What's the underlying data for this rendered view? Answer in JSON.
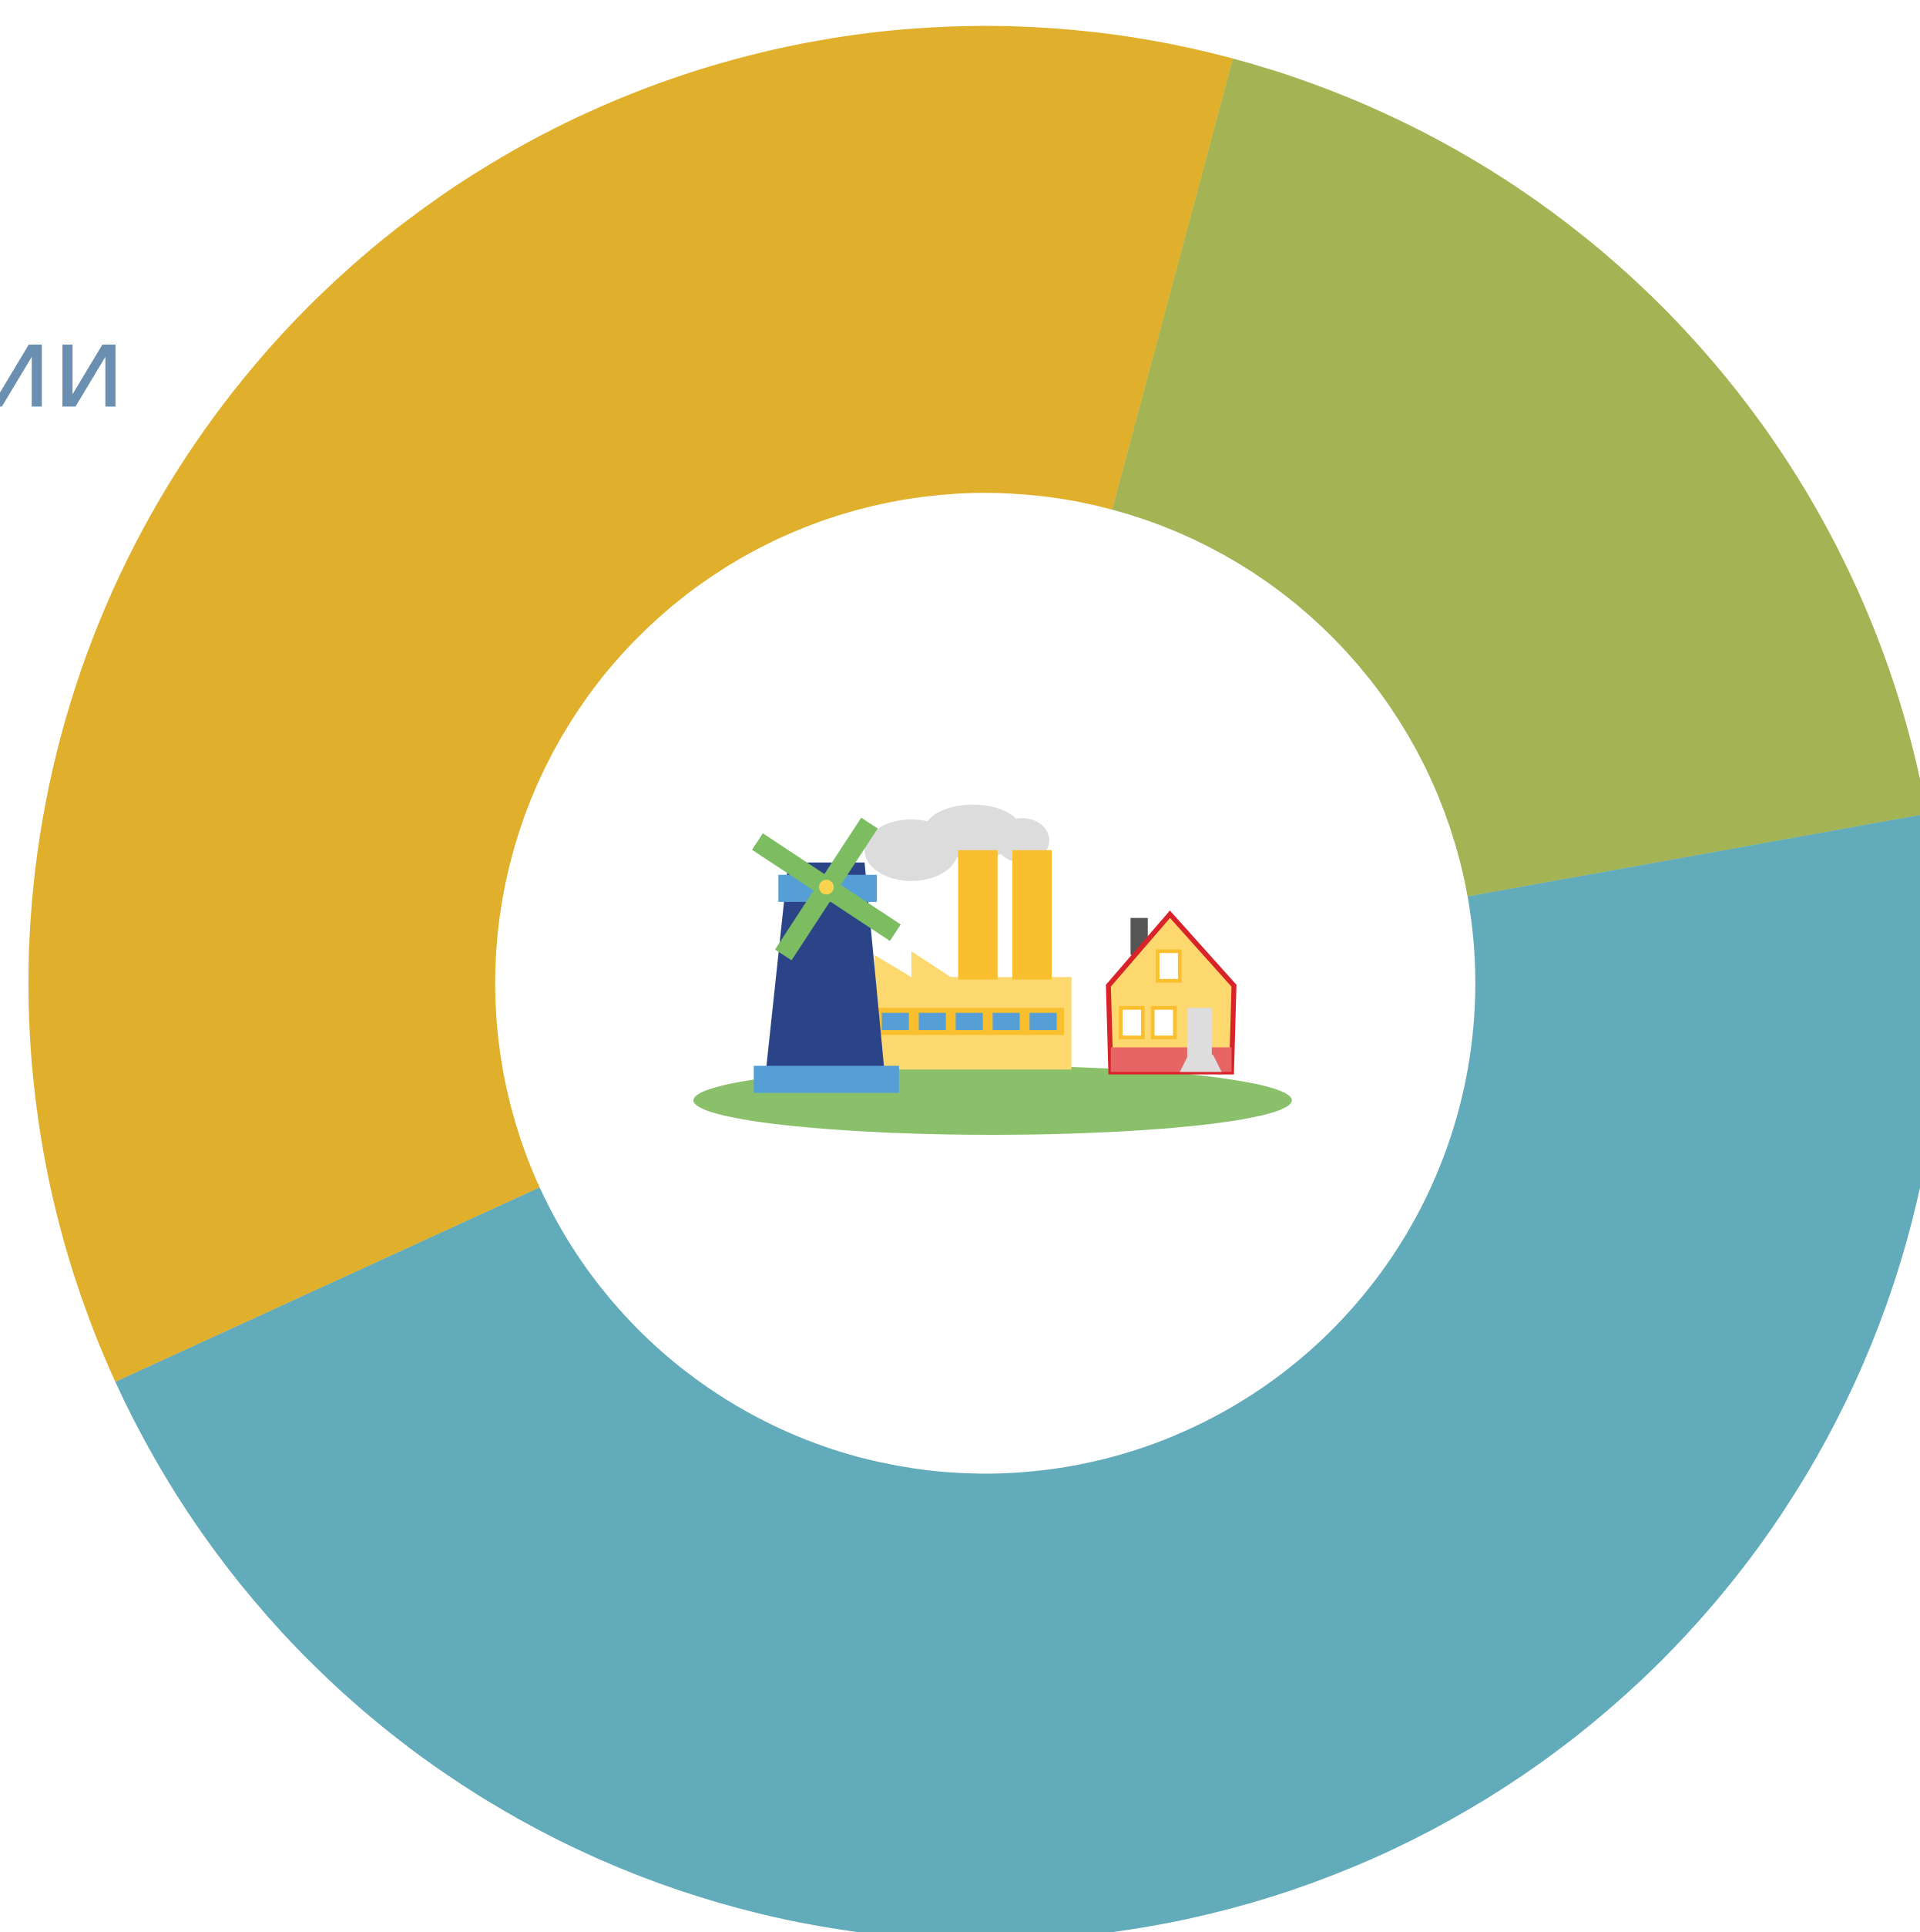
{
  "chart_data": {
    "type": "donut",
    "title": "ии",
    "categories": [
      "Green",
      "Teal",
      "Yellow"
    ],
    "values": [
      18,
      46,
      36
    ],
    "colors": [
      "#a4b353",
      "#62abba",
      "#e0b02c"
    ]
  }
}
